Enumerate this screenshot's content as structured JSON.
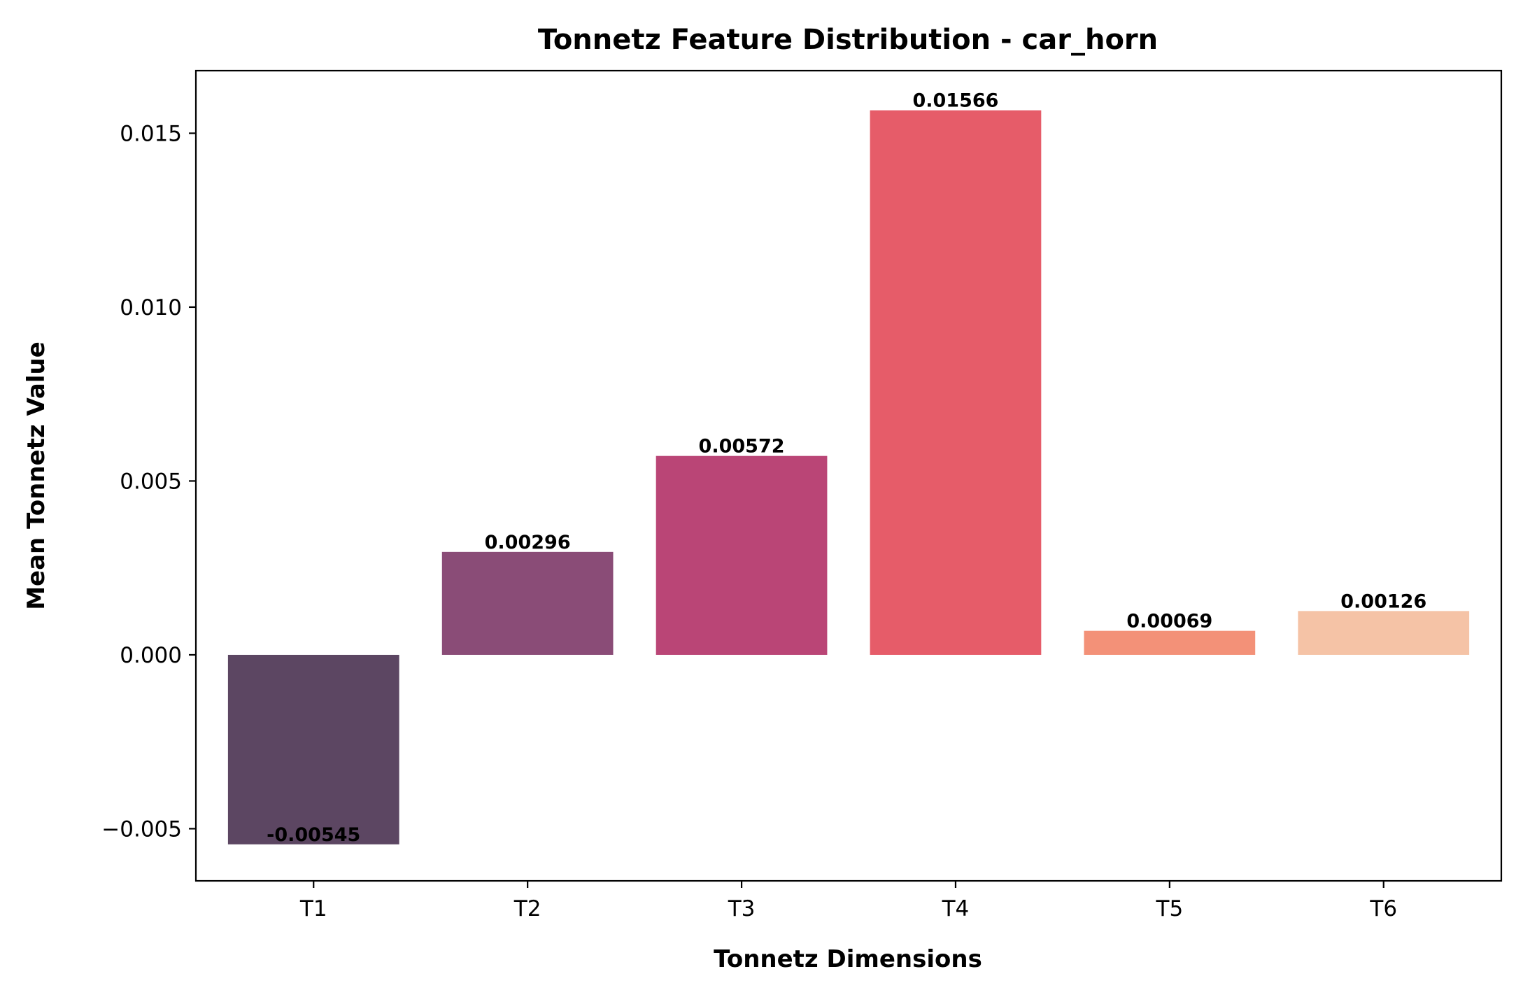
{
  "chart_data": {
    "type": "bar",
    "title": "Tonnetz Feature Distribution - car_horn",
    "xlabel": "Tonnetz Dimensions",
    "ylabel": "Mean Tonnetz Value",
    "categories": [
      "T1",
      "T2",
      "T3",
      "T4",
      "T5",
      "T6"
    ],
    "values": [
      -0.00545,
      0.00296,
      0.00572,
      0.01566,
      0.00069,
      0.00126
    ],
    "value_labels": [
      "-0.00545",
      "0.00296",
      "0.00572",
      "0.01566",
      "0.00069",
      "0.00126"
    ],
    "colors": [
      "#5c4662",
      "#8a4c77",
      "#ba4576",
      "#e65c69",
      "#f39178",
      "#f5c3a6"
    ],
    "ylim": [
      -0.0065,
      0.0168
    ],
    "yticks": [
      -0.005,
      0.0,
      0.005,
      0.01,
      0.015
    ],
    "ytick_labels": [
      "−0.005",
      "0.000",
      "0.005",
      "0.010",
      "0.015"
    ],
    "grid": false,
    "legend": "none"
  }
}
